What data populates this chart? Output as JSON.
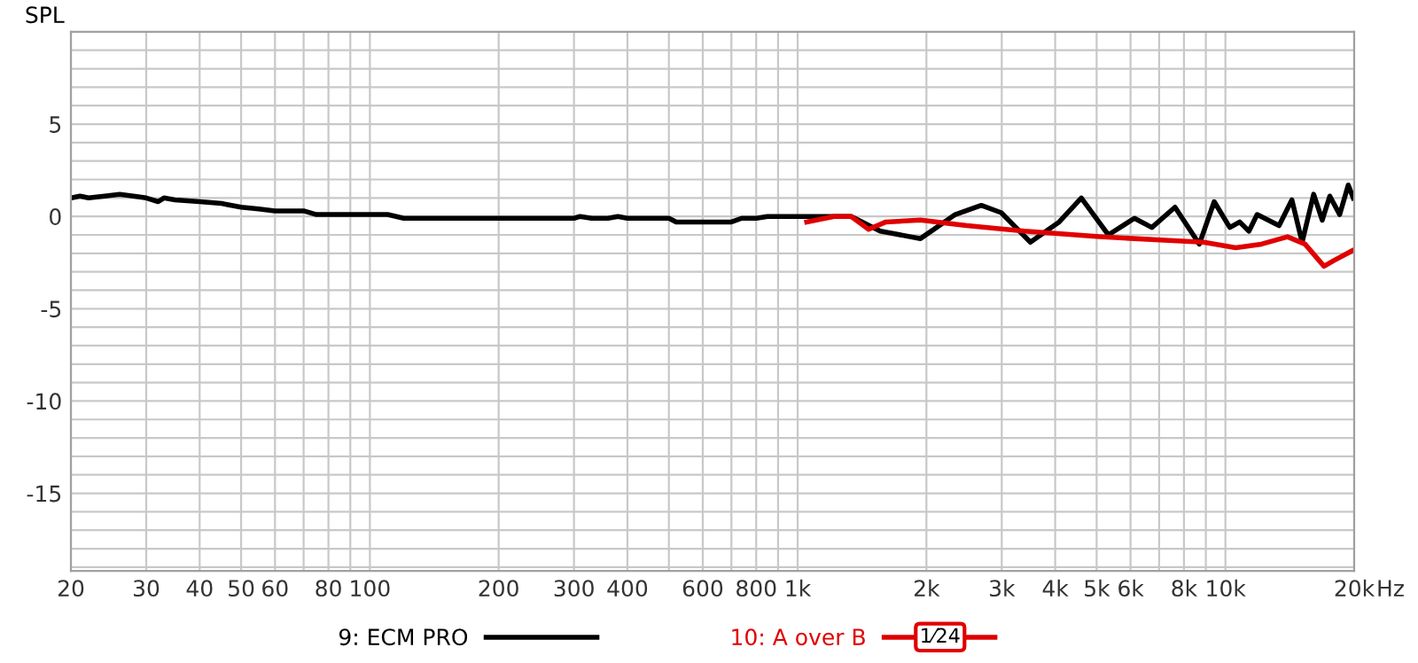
{
  "chart_data": {
    "type": "line",
    "ylabel": "SPL",
    "log": "x",
    "grid": true,
    "legend": "bottom",
    "line_style": "solid",
    "marker": "none",
    "xlim": [
      20,
      20000
    ],
    "ylim": [
      -19.2,
      10
    ],
    "xticks": [
      20,
      30,
      40,
      50,
      60,
      {
        "value": 70,
        "label": null
      },
      80,
      {
        "value": 90,
        "label": null
      },
      100,
      200,
      300,
      400,
      {
        "value": 500,
        "label": null
      },
      600,
      {
        "value": 700,
        "label": null
      },
      800,
      {
        "value": 900,
        "label": null
      },
      {
        "value": 1000,
        "label": "1k"
      },
      {
        "value": 2000,
        "label": "2k"
      },
      {
        "value": 3000,
        "label": "3k"
      },
      {
        "value": 4000,
        "label": "4k"
      },
      {
        "value": 5000,
        "label": "5k"
      },
      {
        "value": 6000,
        "label": "6k"
      },
      {
        "value": 7000,
        "label": null
      },
      {
        "value": 8000,
        "label": "8k"
      },
      {
        "value": 9000,
        "label": null
      },
      {
        "value": 10000,
        "label": "10k"
      },
      {
        "value": 20000,
        "label": "20k"
      }
    ],
    "xlabel": "Hz",
    "yticks": [
      {
        "value": -19,
        "label": null
      },
      {
        "value": -18,
        "label": null
      },
      {
        "value": -17,
        "label": null
      },
      {
        "value": -16,
        "label": null
      },
      -15,
      {
        "value": -14,
        "label": null
      },
      {
        "value": -13,
        "label": null
      },
      {
        "value": -12,
        "label": null
      },
      {
        "value": -11,
        "label": null
      },
      -10,
      {
        "value": -9,
        "label": null
      },
      {
        "value": -8,
        "label": null
      },
      {
        "value": -7,
        "label": null
      },
      {
        "value": -6,
        "label": null
      },
      -5,
      {
        "value": -4,
        "label": null
      },
      {
        "value": -3,
        "label": null
      },
      {
        "value": -2,
        "label": null
      },
      {
        "value": -1,
        "label": null
      },
      0,
      {
        "value": 1,
        "label": null
      },
      {
        "value": 2,
        "label": null
      },
      {
        "value": 3,
        "label": null
      },
      {
        "value": 4,
        "label": null
      },
      5,
      {
        "value": 6,
        "label": null
      },
      {
        "value": 7,
        "label": null
      },
      {
        "value": 8,
        "label": null
      },
      {
        "value": 9,
        "label": null
      }
    ],
    "annotations": [
      "1⁄24"
    ],
    "series": [
      {
        "name": "9: ECM PRO",
        "color": "#000000",
        "x": [
          20,
          21,
          22,
          24,
          26,
          28,
          30,
          32,
          33,
          35,
          40,
          45,
          50,
          55,
          60,
          70,
          75,
          100,
          110,
          120,
          200,
          300,
          310,
          330,
          360,
          380,
          400,
          500,
          520,
          700,
          740,
          800,
          850,
          1000,
          1334,
          1560,
          1937,
          2335,
          2687,
          2993,
          3500,
          4086,
          4604,
          5325,
          6128,
          6731,
          7623,
          8690,
          9414,
          10240,
          10800,
          11350,
          11860,
          13350,
          14300,
          15110,
          16080,
          16840,
          17540,
          18500,
          19370,
          19900
        ],
        "values": [
          1.0,
          1.1,
          1.0,
          1.1,
          1.2,
          1.1,
          1.0,
          0.8,
          1.0,
          0.9,
          0.8,
          0.7,
          0.5,
          0.4,
          0.3,
          0.3,
          0.1,
          0.1,
          0.1,
          -0.1,
          -0.1,
          -0.1,
          0.0,
          -0.1,
          -0.1,
          0.0,
          -0.1,
          -0.1,
          -0.3,
          -0.3,
          -0.1,
          -0.1,
          0.0,
          0.0,
          0.0,
          -0.8,
          -1.2,
          0.1,
          0.6,
          0.2,
          -1.4,
          -0.3,
          1.0,
          -1.0,
          -0.1,
          -0.6,
          0.5,
          -1.5,
          0.8,
          -0.6,
          -0.3,
          -0.8,
          0.1,
          -0.5,
          0.9,
          -1.4,
          1.2,
          -0.2,
          1.1,
          0.1,
          1.7,
          1.0
        ]
      },
      {
        "name": "10: A over B",
        "color": "#e00000",
        "x": [
          1050,
          1216,
          1334,
          1465,
          1608,
          1937,
          2485,
          3390,
          5080,
          7380,
          8890,
          10570,
          12140,
          13970,
          15350,
          17000,
          17900,
          20000
        ],
        "values": [
          -0.3,
          0,
          0.0,
          -0.7,
          -0.3,
          -0.2,
          -0.5,
          -0.8,
          -1.1,
          -1.3,
          -1.4,
          -1.7,
          -1.5,
          -1.1,
          -1.5,
          -2.7,
          -2.4,
          -1.8
        ]
      }
    ]
  }
}
